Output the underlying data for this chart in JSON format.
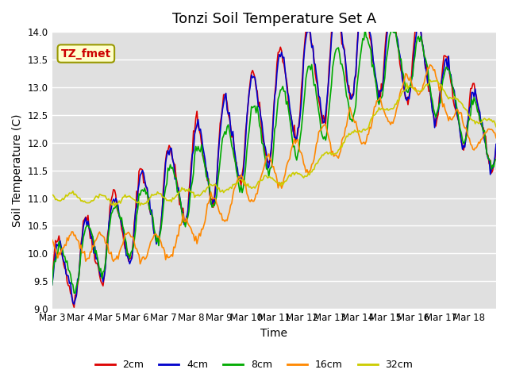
{
  "title": "Tonzi Soil Temperature Set A",
  "xlabel": "Time",
  "ylabel": "Soil Temperature (C)",
  "ylim": [
    9.0,
    14.0
  ],
  "yticks": [
    9.0,
    9.5,
    10.0,
    10.5,
    11.0,
    11.5,
    12.0,
    12.5,
    13.0,
    13.5,
    14.0
  ],
  "xtick_labels": [
    "Mar 3",
    "Mar 4",
    "Mar 5",
    "Mar 6",
    "Mar 7",
    "Mar 8",
    "Mar 9",
    "Mar 10",
    "Mar 11",
    "Mar 12",
    "Mar 13",
    "Mar 14",
    "Mar 15",
    "Mar 16",
    "Mar 17",
    "Mar 18"
  ],
  "legend_labels": [
    "2cm",
    "4cm",
    "8cm",
    "16cm",
    "32cm"
  ],
  "line_colors": [
    "#dd0000",
    "#0000cc",
    "#00aa00",
    "#ff8800",
    "#cccc00"
  ],
  "annotation_text": "TZ_fmet",
  "annotation_bg": "#ffffcc",
  "annotation_fg": "#cc0000",
  "bg_color": "#e0e0e0",
  "title_fontsize": 13,
  "label_fontsize": 10,
  "tick_fontsize": 8.5
}
